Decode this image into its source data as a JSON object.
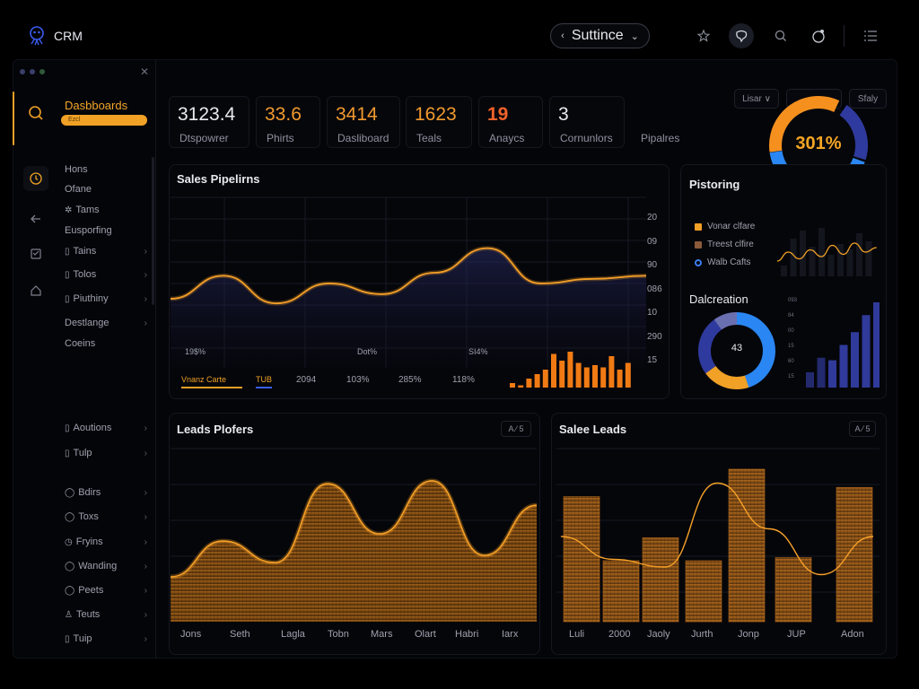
{
  "app": {
    "name": "CRM"
  },
  "header": {
    "switcher_label": "Suttince"
  },
  "sidebar": {
    "title": "Dasbboards",
    "pill": "Ezcl",
    "nav": [
      {
        "label": "Hons",
        "icon": ""
      },
      {
        "label": "Ofane",
        "icon": ""
      },
      {
        "label": "Tams",
        "icon": "✲"
      },
      {
        "label": "Eusporfing",
        "icon": ""
      },
      {
        "label": "Tains",
        "icon": "▯"
      },
      {
        "label": "Tolos",
        "icon": "▯"
      },
      {
        "label": "Piuthiny",
        "icon": "▯"
      },
      {
        "label": "Destlange",
        "icon": ""
      },
      {
        "label": "Coeins",
        "icon": ""
      },
      {
        "label": "Aoutions",
        "icon": "▯"
      },
      {
        "label": "Tulp",
        "icon": "▯"
      },
      {
        "label": "Bdirs",
        "icon": "◯"
      },
      {
        "label": "Toxs",
        "icon": "◯"
      },
      {
        "label": "Fryins",
        "icon": "◷"
      },
      {
        "label": "Wanding",
        "icon": "◯"
      },
      {
        "label": "Peets",
        "icon": "◯"
      },
      {
        "label": "Teuts",
        "icon": "♙"
      },
      {
        "label": "Tuip",
        "icon": "▯"
      }
    ]
  },
  "kpis": [
    {
      "value": "3123.4",
      "label": "Dtspowrer",
      "color": "#e8eaf0"
    },
    {
      "value": "33.6",
      "label": "Phirts",
      "color": "#f29a2e"
    },
    {
      "value": "3414",
      "label": "Dasliboard",
      "color": "#f29a2e"
    },
    {
      "value": "1623",
      "label": "Teals",
      "color": "#f29a2e"
    },
    {
      "value": "19",
      "label": "Anaycs",
      "color": "#f0622a"
    },
    {
      "value": "3",
      "label": "Cornunlors",
      "color": "#e8eaf0"
    },
    {
      "value": "",
      "label": "Pipalres",
      "color": "#e8eaf0"
    }
  ],
  "kpi_donut": {
    "label": "301%",
    "fraction": 0.55
  },
  "top_buttons": {
    "b1": "Lisar ∨",
    "b2": "Sfaly"
  },
  "sales_pipeline": {
    "title": "Sales Pipelirns",
    "y_labels": [
      "20",
      "09",
      "90",
      "086",
      "10",
      "290",
      "15"
    ],
    "x_labels": [
      "19$%",
      "Dot%",
      "SI4%"
    ],
    "bottom_tabs": [
      "Vnanz Carte",
      "TUB",
      "2094",
      "103%",
      "285%",
      "118%"
    ]
  },
  "pistoring": {
    "title": "Pistoring",
    "legend": [
      "Vonar clfare",
      "Treest clfire",
      "Walb Cafts"
    ],
    "legend_colors": [
      "#f0a126",
      "#8a5a3a",
      "#3b7df0"
    ]
  },
  "dalcreation": {
    "title": "Dalcreation",
    "donut_value": "43",
    "y_labels": [
      "093",
      "84",
      "00",
      "15",
      "60",
      "15"
    ]
  },
  "leads_plofers": {
    "title": "Leads Plofers",
    "button": "A ⁄ 5",
    "x_labels": [
      "Jons",
      "Seth",
      "Lagla",
      "Tobn",
      "Mars",
      "Olart",
      "Habri",
      "Iarx"
    ]
  },
  "sales_leads": {
    "title": "Salee Leads",
    "button": "A ⁄ 5",
    "x_labels": [
      "Luli",
      "2000",
      "Jaoly",
      "Jurth",
      "Jonp",
      "JUP",
      "Adon"
    ]
  },
  "chart_data": [
    {
      "type": "area",
      "title": "Sales Pipelirns",
      "series": [
        {
          "values": [
            0.45,
            0.6,
            0.42,
            0.55,
            0.48,
            0.62,
            0.78,
            0.55,
            0.58,
            0.6
          ]
        }
      ],
      "bars": [
        0.1,
        0.05,
        0.2,
        0.3,
        0.4,
        0.75,
        0.6,
        0.8,
        0.55,
        0.45,
        0.5,
        0.45,
        0.7,
        0.4,
        0.55
      ]
    },
    {
      "type": "bar",
      "title": "Pistoring",
      "values": [
        0.2,
        0.7,
        0.85,
        0.55,
        0.9,
        0.4,
        0.6,
        0.5,
        0.8,
        0.65
      ],
      "line": [
        0.3,
        0.5,
        0.35,
        0.55,
        0.4,
        0.65,
        0.45,
        0.7,
        0.5,
        0.6
      ]
    },
    {
      "type": "pie",
      "title": "Dalcreation",
      "values": [
        45,
        20,
        25,
        10
      ]
    },
    {
      "type": "bar",
      "title": "Dalcreation",
      "values": [
        0.18,
        0.35,
        0.32,
        0.5,
        0.65,
        0.85,
        1.0
      ]
    },
    {
      "type": "area",
      "title": "Leads Plofers",
      "x": [
        "Jons",
        "Seth",
        "Lagla",
        "Tobn",
        "Mars",
        "Olart",
        "Habri",
        "Iarx"
      ],
      "values": [
        0.25,
        0.5,
        0.35,
        0.9,
        0.55,
        0.92,
        0.4,
        0.75
      ]
    },
    {
      "type": "bar",
      "title": "Salee Leads",
      "x": [
        "Luli",
        "2000",
        "Jaoly",
        "Jurth",
        "Jonp",
        "JUP",
        "Adon"
      ],
      "values": [
        0.82,
        0.4,
        0.55,
        0.4,
        1.0,
        0.42,
        0.88
      ],
      "line": [
        0.5,
        0.35,
        0.3,
        0.85,
        0.55,
        0.25,
        0.5
      ]
    }
  ]
}
